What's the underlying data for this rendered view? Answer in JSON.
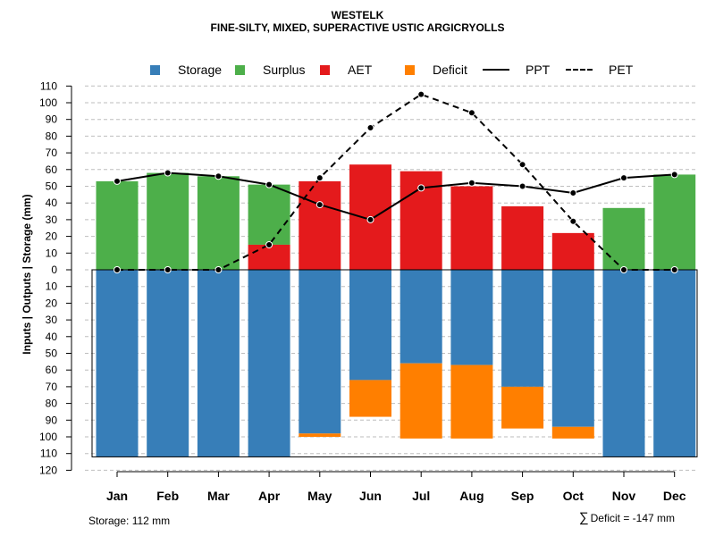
{
  "chart_data": {
    "type": "bar",
    "title": "WESTELK",
    "subtitle": "FINE-SILTY, MIXED, SUPERACTIVE USTIC ARGICRYOLLS",
    "ylabel": "Inputs | Outputs | Storage     (mm)",
    "xlabel": "",
    "categories": [
      "Jan",
      "Feb",
      "Mar",
      "Apr",
      "May",
      "Jun",
      "Jul",
      "Aug",
      "Sep",
      "Oct",
      "Nov",
      "Dec"
    ],
    "ylim": [
      -120,
      110
    ],
    "y_ticks": [
      110,
      100,
      90,
      80,
      70,
      60,
      50,
      40,
      30,
      20,
      10,
      0,
      -10,
      -20,
      -30,
      -40,
      -50,
      -60,
      -70,
      -80,
      -90,
      -100,
      -110,
      -120
    ],
    "y_tick_labels": [
      "110",
      "100",
      "90",
      "80",
      "70",
      "60",
      "50",
      "40",
      "30",
      "20",
      "10",
      "0",
      "10",
      "20",
      "30",
      "40",
      "50",
      "60",
      "70",
      "80",
      "90",
      "100",
      "110",
      "120"
    ],
    "grid": true,
    "legend_position": "top",
    "legend": [
      {
        "key": "storage",
        "label": "Storage",
        "kind": "box"
      },
      {
        "key": "surplus",
        "label": "Surplus",
        "kind": "box"
      },
      {
        "key": "aet",
        "label": "AET",
        "kind": "box"
      },
      {
        "key": "deficit",
        "label": "Deficit",
        "kind": "box"
      },
      {
        "key": "ppt",
        "label": "PPT",
        "kind": "solid"
      },
      {
        "key": "pet",
        "label": "PET",
        "kind": "dashed"
      }
    ],
    "colors": {
      "storage": "#377EB8",
      "surplus": "#4DAF4A",
      "aet": "#E41A1C",
      "deficit": "#FF7F00",
      "line": "#000000",
      "grid": "#BEBEBE"
    },
    "series": [
      {
        "name": "Surplus",
        "key": "surplus",
        "values": [
          53,
          58,
          56,
          36,
          0,
          0,
          0,
          0,
          0,
          0,
          37,
          57
        ]
      },
      {
        "name": "AET",
        "key": "aet",
        "values": [
          0,
          0,
          0,
          15,
          53,
          63,
          59,
          50,
          38,
          22,
          0,
          0
        ]
      },
      {
        "name": "Storage",
        "key": "storage",
        "values": [
          112,
          112,
          112,
          112,
          98,
          66,
          56,
          57,
          70,
          94,
          112,
          112
        ]
      },
      {
        "name": "Deficit",
        "key": "deficit",
        "values": [
          0,
          0,
          0,
          0,
          2,
          22,
          45,
          44,
          25,
          7,
          0,
          0
        ]
      },
      {
        "name": "PPT",
        "key": "ppt",
        "type": "line",
        "values": [
          53,
          58,
          56,
          51,
          39,
          30,
          49,
          52,
          50,
          46,
          55,
          57
        ]
      },
      {
        "name": "PET",
        "key": "pet",
        "type": "line",
        "values": [
          0,
          0,
          0,
          15,
          55,
          85,
          105,
          94,
          63,
          29,
          0,
          0
        ]
      }
    ],
    "storage_capacity": 112
  },
  "notes": {
    "storage": "Storage: 112 mm",
    "deficit_symbol": "∑",
    "deficit": "Deficit = -147 mm"
  }
}
